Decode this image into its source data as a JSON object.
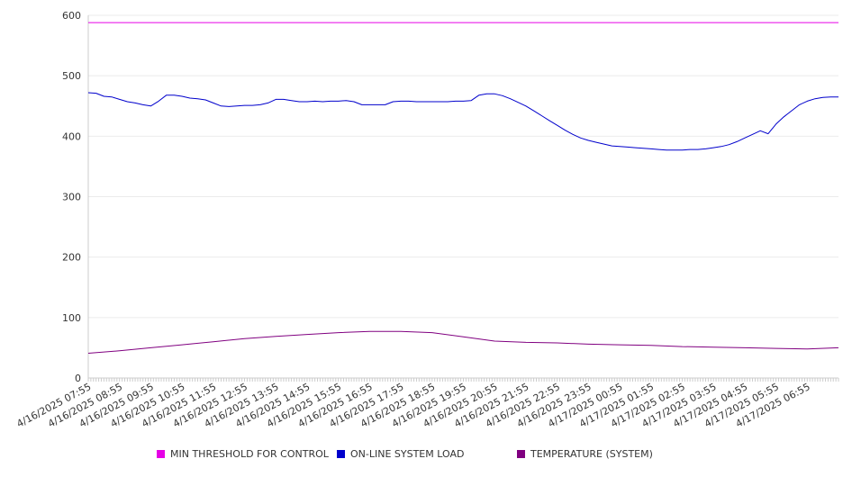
{
  "chart_data": {
    "type": "line",
    "title": "",
    "xlabel": "",
    "ylabel": "",
    "ylim": [
      0,
      600
    ],
    "y_ticks": [
      "0",
      "100",
      "200",
      "300",
      "400",
      "500",
      "600"
    ],
    "x_tick_labels": [
      "4/16/2025 07:55",
      "4/16/2025 08:55",
      "4/16/2025 09:55",
      "4/16/2025 10:55",
      "4/16/2025 11:55",
      "4/16/2025 12:55",
      "4/16/2025 13:55",
      "4/16/2025 14:55",
      "4/16/2025 15:55",
      "4/16/2025 16:55",
      "4/16/2025 17:55",
      "4/16/2025 18:55",
      "4/16/2025 19:55",
      "4/16/2025 20:55",
      "4/16/2025 21:55",
      "4/16/2025 22:55",
      "4/16/2025 23:55",
      "4/17/2025 00:55",
      "4/17/2025 01:55",
      "4/17/2025 02:55",
      "4/17/2025 03:55",
      "4/17/2025 04:55",
      "4/17/2025 05:55",
      "4/17/2025 06:55"
    ],
    "x_range": [
      "4/16/2025 07:55",
      "4/17/2025 07:55"
    ],
    "grid": "horizontal",
    "legend_position": "bottom",
    "series": [
      {
        "name": "MIN THRESHOLD FOR CONTROL",
        "color": "#e600e6",
        "points": [
          [
            "4/16/2025 07:55",
            588
          ],
          [
            "4/17/2025 07:55",
            588
          ]
        ]
      },
      {
        "name": "ON-LINE SYSTEM LOAD",
        "color": "#0000cc",
        "points": [
          [
            "4/16/2025 07:55",
            472
          ],
          [
            "4/16/2025 08:10",
            471
          ],
          [
            "4/16/2025 08:25",
            466
          ],
          [
            "4/16/2025 08:40",
            465
          ],
          [
            "4/16/2025 08:55",
            461
          ],
          [
            "4/16/2025 09:10",
            457
          ],
          [
            "4/16/2025 09:25",
            455
          ],
          [
            "4/16/2025 09:40",
            452
          ],
          [
            "4/16/2025 09:55",
            450
          ],
          [
            "4/16/2025 10:10",
            458
          ],
          [
            "4/16/2025 10:25",
            468
          ],
          [
            "4/16/2025 10:40",
            468
          ],
          [
            "4/16/2025 10:55",
            466
          ],
          [
            "4/16/2025 11:10",
            463
          ],
          [
            "4/16/2025 11:25",
            462
          ],
          [
            "4/16/2025 11:40",
            460
          ],
          [
            "4/16/2025 11:55",
            455
          ],
          [
            "4/16/2025 12:10",
            450
          ],
          [
            "4/16/2025 12:25",
            449
          ],
          [
            "4/16/2025 12:40",
            450
          ],
          [
            "4/16/2025 12:55",
            451
          ],
          [
            "4/16/2025 13:10",
            451
          ],
          [
            "4/16/2025 13:25",
            452
          ],
          [
            "4/16/2025 13:40",
            455
          ],
          [
            "4/16/2025 13:55",
            461
          ],
          [
            "4/16/2025 14:10",
            461
          ],
          [
            "4/16/2025 14:25",
            459
          ],
          [
            "4/16/2025 14:40",
            457
          ],
          [
            "4/16/2025 14:55",
            457
          ],
          [
            "4/16/2025 15:10",
            458
          ],
          [
            "4/16/2025 15:25",
            457
          ],
          [
            "4/16/2025 15:40",
            458
          ],
          [
            "4/16/2025 15:55",
            458
          ],
          [
            "4/16/2025 16:10",
            459
          ],
          [
            "4/16/2025 16:25",
            457
          ],
          [
            "4/16/2025 16:40",
            452
          ],
          [
            "4/16/2025 16:55",
            452
          ],
          [
            "4/16/2025 17:10",
            452
          ],
          [
            "4/16/2025 17:25",
            452
          ],
          [
            "4/16/2025 17:40",
            457
          ],
          [
            "4/16/2025 17:55",
            458
          ],
          [
            "4/16/2025 18:10",
            458
          ],
          [
            "4/16/2025 18:25",
            457
          ],
          [
            "4/16/2025 18:40",
            457
          ],
          [
            "4/16/2025 18:55",
            457
          ],
          [
            "4/16/2025 19:10",
            457
          ],
          [
            "4/16/2025 19:25",
            457
          ],
          [
            "4/16/2025 19:40",
            458
          ],
          [
            "4/16/2025 19:55",
            458
          ],
          [
            "4/16/2025 20:10",
            459
          ],
          [
            "4/16/2025 20:25",
            468
          ],
          [
            "4/16/2025 20:40",
            470
          ],
          [
            "4/16/2025 20:55",
            470
          ],
          [
            "4/16/2025 21:10",
            467
          ],
          [
            "4/16/2025 21:25",
            462
          ],
          [
            "4/16/2025 21:40",
            456
          ],
          [
            "4/16/2025 21:55",
            450
          ],
          [
            "4/16/2025 22:10",
            442
          ],
          [
            "4/16/2025 22:25",
            434
          ],
          [
            "4/16/2025 22:40",
            426
          ],
          [
            "4/16/2025 22:55",
            418
          ],
          [
            "4/16/2025 23:10",
            410
          ],
          [
            "4/16/2025 23:25",
            403
          ],
          [
            "4/16/2025 23:40",
            397
          ],
          [
            "4/16/2025 23:55",
            393
          ],
          [
            "4/17/2025 00:10",
            390
          ],
          [
            "4/17/2025 00:25",
            387
          ],
          [
            "4/17/2025 00:40",
            384
          ],
          [
            "4/17/2025 00:55",
            383
          ],
          [
            "4/17/2025 01:10",
            382
          ],
          [
            "4/17/2025 01:25",
            381
          ],
          [
            "4/17/2025 01:40",
            380
          ],
          [
            "4/17/2025 01:55",
            379
          ],
          [
            "4/17/2025 02:10",
            378
          ],
          [
            "4/17/2025 02:25",
            377
          ],
          [
            "4/17/2025 02:40",
            377
          ],
          [
            "4/17/2025 02:55",
            377
          ],
          [
            "4/17/2025 03:10",
            378
          ],
          [
            "4/17/2025 03:25",
            378
          ],
          [
            "4/17/2025 03:40",
            379
          ],
          [
            "4/17/2025 03:55",
            381
          ],
          [
            "4/17/2025 04:10",
            383
          ],
          [
            "4/17/2025 04:25",
            386
          ],
          [
            "4/17/2025 04:40",
            391
          ],
          [
            "4/17/2025 04:55",
            397
          ],
          [
            "4/17/2025 05:10",
            403
          ],
          [
            "4/17/2025 05:25",
            409
          ],
          [
            "4/17/2025 05:40",
            404
          ],
          [
            "4/17/2025 05:55",
            420
          ],
          [
            "4/17/2025 06:10",
            432
          ],
          [
            "4/17/2025 06:25",
            442
          ],
          [
            "4/17/2025 06:40",
            452
          ],
          [
            "4/17/2025 06:55",
            458
          ],
          [
            "4/17/2025 07:10",
            462
          ],
          [
            "4/17/2025 07:25",
            464
          ],
          [
            "4/17/2025 07:40",
            465
          ],
          [
            "4/17/2025 07:55",
            465
          ]
        ]
      },
      {
        "name": "TEMPERATURE (SYSTEM)",
        "color": "#800080",
        "points": [
          [
            "4/16/2025 07:55",
            41
          ],
          [
            "4/16/2025 08:55",
            45
          ],
          [
            "4/16/2025 09:55",
            50
          ],
          [
            "4/16/2025 10:55",
            55
          ],
          [
            "4/16/2025 11:55",
            60
          ],
          [
            "4/16/2025 12:55",
            65
          ],
          [
            "4/16/2025 13:55",
            69
          ],
          [
            "4/16/2025 14:55",
            72
          ],
          [
            "4/16/2025 15:55",
            75
          ],
          [
            "4/16/2025 16:55",
            77
          ],
          [
            "4/16/2025 17:55",
            77
          ],
          [
            "4/16/2025 18:55",
            75
          ],
          [
            "4/16/2025 19:55",
            68
          ],
          [
            "4/16/2025 20:55",
            61
          ],
          [
            "4/16/2025 21:55",
            59
          ],
          [
            "4/16/2025 22:55",
            58
          ],
          [
            "4/16/2025 23:55",
            56
          ],
          [
            "4/17/2025 00:55",
            55
          ],
          [
            "4/17/2025 01:55",
            54
          ],
          [
            "4/17/2025 02:55",
            52
          ],
          [
            "4/17/2025 03:55",
            51
          ],
          [
            "4/17/2025 04:55",
            50
          ],
          [
            "4/17/2025 05:55",
            49
          ],
          [
            "4/17/2025 06:55",
            48
          ],
          [
            "4/17/2025 07:55",
            50
          ]
        ]
      }
    ]
  }
}
